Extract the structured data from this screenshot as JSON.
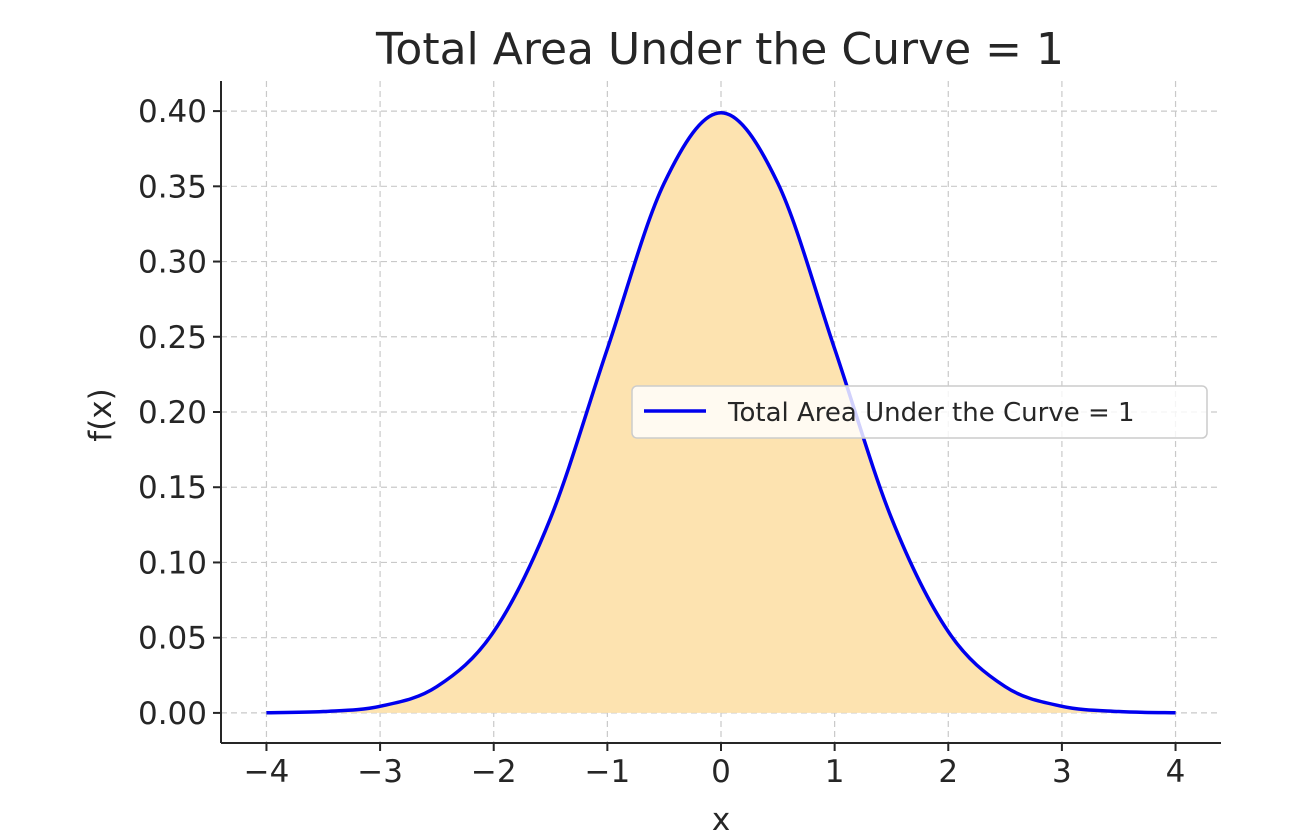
{
  "chart_data": {
    "type": "area",
    "title": "Total Area Under the Curve = 1",
    "xlabel": "x",
    "ylabel": "f(x)",
    "xlim": [
      -4.4,
      4.4
    ],
    "ylim": [
      -0.02,
      0.42
    ],
    "xticks": [
      -4,
      -3,
      -2,
      -1,
      0,
      1,
      2,
      3,
      4
    ],
    "xtick_labels": [
      "−4",
      "−3",
      "−2",
      "−1",
      "0",
      "1",
      "2",
      "3",
      "4"
    ],
    "yticks": [
      0.0,
      0.05,
      0.1,
      0.15,
      0.2,
      0.25,
      0.3,
      0.35,
      0.4
    ],
    "ytick_labels": [
      "0.00",
      "0.05",
      "0.10",
      "0.15",
      "0.20",
      "0.25",
      "0.30",
      "0.35",
      "0.40"
    ],
    "grid": true,
    "legend_position": "center-right",
    "fill_color": "#fde3b0",
    "series": [
      {
        "name": "Total Area Under the Curve = 1",
        "color": "#0000ee",
        "x": [
          -4.0,
          -3.5,
          -3.0,
          -2.5,
          -2.0,
          -1.5,
          -1.0,
          -0.5,
          0.0,
          0.5,
          1.0,
          1.5,
          2.0,
          2.5,
          3.0,
          3.5,
          4.0
        ],
        "y": [
          0.0001,
          0.0009,
          0.0044,
          0.0175,
          0.054,
          0.1295,
          0.242,
          0.3521,
          0.3989,
          0.3521,
          0.242,
          0.1295,
          0.054,
          0.0175,
          0.0044,
          0.0009,
          0.0001
        ]
      }
    ]
  }
}
